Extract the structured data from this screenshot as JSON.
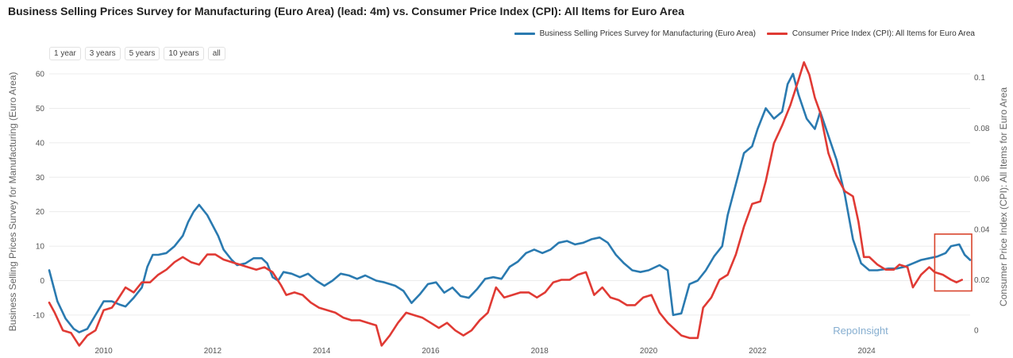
{
  "colors": {
    "series_1": "#2a7ab0",
    "series_2": "#e03a34",
    "highlight_box": "#d9442c",
    "grid": "#ececec",
    "watermark": "#86aed0"
  },
  "title": "Business Selling Prices Survey for Manufacturing (Euro Area) (lead: 4m) vs. Consumer Price Index (CPI): All Items for Euro Area",
  "legend": {
    "series_1": "Business Selling Prices Survey for Manufacturing (Euro Area)",
    "series_2": "Consumer Price Index (CPI): All Items for Euro Area"
  },
  "range_buttons": [
    "1 year",
    "3 years",
    "5 years",
    "10 years",
    "all"
  ],
  "watermark": "RepoInsight",
  "chart_data": {
    "type": "line",
    "title": "Business Selling Prices Survey for Manufacturing (Euro Area) (lead: 4m) vs. Consumer Price Index (CPI): All Items for Euro Area",
    "xlabel": "",
    "x_range": [
      2009.0,
      2025.9
    ],
    "x_ticks": [
      {
        "value": 2010,
        "label": "2010"
      },
      {
        "value": 2012,
        "label": "2012"
      },
      {
        "value": 2014,
        "label": "2014"
      },
      {
        "value": 2016,
        "label": "2016"
      },
      {
        "value": 2018,
        "label": "2018"
      },
      {
        "value": 2020,
        "label": "2020"
      },
      {
        "value": 2022,
        "label": "2022"
      },
      {
        "value": 2024,
        "label": "2024"
      }
    ],
    "y_left": {
      "label": "Business Selling Prices Survey for Manufacturing (Euro Area)",
      "range": [
        -19,
        63
      ],
      "ticks": [
        -10,
        0,
        10,
        20,
        30,
        40,
        50,
        60
      ]
    },
    "y_right": {
      "label": "Consumer Price Index (CPI): All Items for Euro Area",
      "range": [
        -0.0062,
        0.1055
      ],
      "ticks": [
        {
          "value": 0,
          "label": "0"
        },
        {
          "value": 0.02,
          "label": "0.02"
        },
        {
          "value": 0.04,
          "label": "0.04"
        },
        {
          "value": 0.06,
          "label": "0.06"
        },
        {
          "value": 0.08,
          "label": "0.08"
        },
        {
          "value": 0.1,
          "label": "0.1"
        }
      ]
    },
    "highlight": {
      "x_range": [
        2025.25,
        2026.1
      ],
      "y_left_range": [
        -3,
        13.5
      ]
    },
    "series": [
      {
        "name": "Business Selling Prices Survey for Manufacturing (Euro Area)",
        "axis": "left",
        "points": [
          [
            2009.0,
            3
          ],
          [
            2009.15,
            -6
          ],
          [
            2009.3,
            -11
          ],
          [
            2009.45,
            -14
          ],
          [
            2009.55,
            -15
          ],
          [
            2009.7,
            -14
          ],
          [
            2009.85,
            -10
          ],
          [
            2010.0,
            -6
          ],
          [
            2010.15,
            -6
          ],
          [
            2010.3,
            -7
          ],
          [
            2010.4,
            -7.5
          ],
          [
            2010.55,
            -5
          ],
          [
            2010.7,
            -2
          ],
          [
            2010.8,
            4
          ],
          [
            2010.9,
            7.5
          ],
          [
            2011.0,
            7.5
          ],
          [
            2011.15,
            8
          ],
          [
            2011.3,
            10
          ],
          [
            2011.45,
            13
          ],
          [
            2011.55,
            17
          ],
          [
            2011.65,
            20
          ],
          [
            2011.75,
            22
          ],
          [
            2011.9,
            19
          ],
          [
            2012.0,
            16
          ],
          [
            2012.1,
            13
          ],
          [
            2012.2,
            9
          ],
          [
            2012.35,
            6
          ],
          [
            2012.45,
            4.5
          ],
          [
            2012.6,
            5
          ],
          [
            2012.75,
            6.5
          ],
          [
            2012.9,
            6.5
          ],
          [
            2013.0,
            5
          ],
          [
            2013.1,
            1
          ],
          [
            2013.2,
            0
          ],
          [
            2013.3,
            2.5
          ],
          [
            2013.45,
            2
          ],
          [
            2013.6,
            1
          ],
          [
            2013.75,
            2
          ],
          [
            2013.9,
            0
          ],
          [
            2014.05,
            -1.5
          ],
          [
            2014.2,
            0
          ],
          [
            2014.35,
            2
          ],
          [
            2014.5,
            1.5
          ],
          [
            2014.65,
            0.5
          ],
          [
            2014.8,
            1.5
          ],
          [
            2015.0,
            0
          ],
          [
            2015.15,
            -0.5
          ],
          [
            2015.35,
            -1.5
          ],
          [
            2015.5,
            -3
          ],
          [
            2015.65,
            -6.5
          ],
          [
            2015.8,
            -4
          ],
          [
            2015.95,
            -1
          ],
          [
            2016.1,
            -0.5
          ],
          [
            2016.25,
            -3.5
          ],
          [
            2016.4,
            -2
          ],
          [
            2016.55,
            -4.5
          ],
          [
            2016.7,
            -5
          ],
          [
            2016.85,
            -2.5
          ],
          [
            2017.0,
            0.5
          ],
          [
            2017.15,
            1
          ],
          [
            2017.3,
            0.5
          ],
          [
            2017.45,
            4
          ],
          [
            2017.6,
            5.5
          ],
          [
            2017.75,
            8
          ],
          [
            2017.9,
            9
          ],
          [
            2018.05,
            8
          ],
          [
            2018.2,
            9
          ],
          [
            2018.35,
            11
          ],
          [
            2018.5,
            11.5
          ],
          [
            2018.65,
            10.5
          ],
          [
            2018.8,
            11
          ],
          [
            2018.95,
            12
          ],
          [
            2019.1,
            12.5
          ],
          [
            2019.25,
            11
          ],
          [
            2019.4,
            7.5
          ],
          [
            2019.55,
            5
          ],
          [
            2019.7,
            3
          ],
          [
            2019.85,
            2.5
          ],
          [
            2020.0,
            3
          ],
          [
            2020.2,
            4.5
          ],
          [
            2020.35,
            3
          ],
          [
            2020.45,
            -10
          ],
          [
            2020.6,
            -9.5
          ],
          [
            2020.75,
            -1
          ],
          [
            2020.9,
            0
          ],
          [
            2021.05,
            3
          ],
          [
            2021.2,
            7
          ],
          [
            2021.35,
            10
          ],
          [
            2021.45,
            19
          ],
          [
            2021.6,
            28
          ],
          [
            2021.75,
            37
          ],
          [
            2021.9,
            39
          ],
          [
            2022.0,
            44
          ],
          [
            2022.15,
            50
          ],
          [
            2022.3,
            47
          ],
          [
            2022.45,
            49
          ],
          [
            2022.55,
            57
          ],
          [
            2022.65,
            60
          ],
          [
            2022.75,
            54
          ],
          [
            2022.9,
            47
          ],
          [
            2023.05,
            44
          ],
          [
            2023.15,
            49
          ],
          [
            2023.3,
            42
          ],
          [
            2023.45,
            35
          ],
          [
            2023.6,
            25
          ],
          [
            2023.75,
            12
          ],
          [
            2023.9,
            5
          ],
          [
            2024.05,
            3
          ],
          [
            2024.2,
            3
          ],
          [
            2024.4,
            3.5
          ],
          [
            2024.55,
            3.5
          ],
          [
            2024.7,
            4
          ],
          [
            2024.85,
            5
          ],
          [
            2025.0,
            6
          ],
          [
            2025.15,
            6.5
          ],
          [
            2025.3,
            7
          ],
          [
            2025.45,
            8
          ],
          [
            2025.55,
            10
          ],
          [
            2025.7,
            10.5
          ],
          [
            2025.8,
            7.5
          ],
          [
            2025.9,
            6
          ]
        ]
      },
      {
        "name": "Consumer Price Index (CPI): All Items for Euro Area",
        "axis": "right",
        "points": [
          [
            2009.0,
            0.011
          ],
          [
            2009.1,
            0.007
          ],
          [
            2009.25,
            0.0
          ],
          [
            2009.4,
            -0.001
          ],
          [
            2009.55,
            -0.006
          ],
          [
            2009.7,
            -0.002
          ],
          [
            2009.85,
            0.0
          ],
          [
            2010.0,
            0.008
          ],
          [
            2010.15,
            0.009
          ],
          [
            2010.25,
            0.012
          ],
          [
            2010.4,
            0.017
          ],
          [
            2010.55,
            0.015
          ],
          [
            2010.7,
            0.019
          ],
          [
            2010.85,
            0.019
          ],
          [
            2011.0,
            0.022
          ],
          [
            2011.15,
            0.024
          ],
          [
            2011.3,
            0.027
          ],
          [
            2011.45,
            0.029
          ],
          [
            2011.6,
            0.027
          ],
          [
            2011.75,
            0.026
          ],
          [
            2011.9,
            0.03
          ],
          [
            2012.05,
            0.03
          ],
          [
            2012.2,
            0.028
          ],
          [
            2012.35,
            0.027
          ],
          [
            2012.5,
            0.026
          ],
          [
            2012.65,
            0.025
          ],
          [
            2012.8,
            0.024
          ],
          [
            2012.95,
            0.025
          ],
          [
            2013.1,
            0.023
          ],
          [
            2013.25,
            0.018
          ],
          [
            2013.35,
            0.014
          ],
          [
            2013.5,
            0.015
          ],
          [
            2013.65,
            0.014
          ],
          [
            2013.8,
            0.011
          ],
          [
            2013.95,
            0.009
          ],
          [
            2014.1,
            0.008
          ],
          [
            2014.25,
            0.007
          ],
          [
            2014.4,
            0.005
          ],
          [
            2014.55,
            0.004
          ],
          [
            2014.7,
            0.004
          ],
          [
            2014.85,
            0.003
          ],
          [
            2015.0,
            0.002
          ],
          [
            2015.1,
            -0.006
          ],
          [
            2015.25,
            -0.002
          ],
          [
            2015.4,
            0.003
          ],
          [
            2015.55,
            0.007
          ],
          [
            2015.7,
            0.006
          ],
          [
            2015.85,
            0.005
          ],
          [
            2016.0,
            0.003
          ],
          [
            2016.15,
            0.001
          ],
          [
            2016.3,
            0.003
          ],
          [
            2016.45,
            0.0
          ],
          [
            2016.6,
            -0.002
          ],
          [
            2016.75,
            0.0
          ],
          [
            2016.9,
            0.004
          ],
          [
            2017.05,
            0.007
          ],
          [
            2017.2,
            0.017
          ],
          [
            2017.35,
            0.013
          ],
          [
            2017.5,
            0.014
          ],
          [
            2017.65,
            0.015
          ],
          [
            2017.8,
            0.015
          ],
          [
            2017.95,
            0.013
          ],
          [
            2018.1,
            0.015
          ],
          [
            2018.25,
            0.019
          ],
          [
            2018.4,
            0.02
          ],
          [
            2018.55,
            0.02
          ],
          [
            2018.7,
            0.022
          ],
          [
            2018.85,
            0.023
          ],
          [
            2019.0,
            0.014
          ],
          [
            2019.15,
            0.017
          ],
          [
            2019.3,
            0.013
          ],
          [
            2019.45,
            0.012
          ],
          [
            2019.6,
            0.01
          ],
          [
            2019.75,
            0.01
          ],
          [
            2019.9,
            0.013
          ],
          [
            2020.05,
            0.014
          ],
          [
            2020.2,
            0.007
          ],
          [
            2020.35,
            0.003
          ],
          [
            2020.5,
            0.0
          ],
          [
            2020.6,
            -0.002
          ],
          [
            2020.75,
            -0.003
          ],
          [
            2020.9,
            -0.003
          ],
          [
            2021.0,
            0.009
          ],
          [
            2021.15,
            0.013
          ],
          [
            2021.3,
            0.02
          ],
          [
            2021.45,
            0.022
          ],
          [
            2021.6,
            0.03
          ],
          [
            2021.75,
            0.041
          ],
          [
            2021.9,
            0.05
          ],
          [
            2022.05,
            0.051
          ],
          [
            2022.15,
            0.059
          ],
          [
            2022.3,
            0.074
          ],
          [
            2022.45,
            0.081
          ],
          [
            2022.6,
            0.089
          ],
          [
            2022.75,
            0.099
          ],
          [
            2022.85,
            0.106
          ],
          [
            2022.95,
            0.101
          ],
          [
            2023.05,
            0.092
          ],
          [
            2023.15,
            0.086
          ],
          [
            2023.3,
            0.07
          ],
          [
            2023.45,
            0.061
          ],
          [
            2023.6,
            0.055
          ],
          [
            2023.75,
            0.053
          ],
          [
            2023.85,
            0.043
          ],
          [
            2023.95,
            0.029
          ],
          [
            2024.05,
            0.029
          ],
          [
            2024.2,
            0.026
          ],
          [
            2024.35,
            0.024
          ],
          [
            2024.5,
            0.024
          ],
          [
            2024.6,
            0.026
          ],
          [
            2024.75,
            0.025
          ],
          [
            2024.85,
            0.017
          ],
          [
            2025.0,
            0.022
          ],
          [
            2025.15,
            0.025
          ],
          [
            2025.25,
            0.023
          ],
          [
            2025.4,
            0.022
          ],
          [
            2025.55,
            0.02
          ],
          [
            2025.65,
            0.019
          ],
          [
            2025.75,
            0.02
          ]
        ]
      }
    ]
  }
}
